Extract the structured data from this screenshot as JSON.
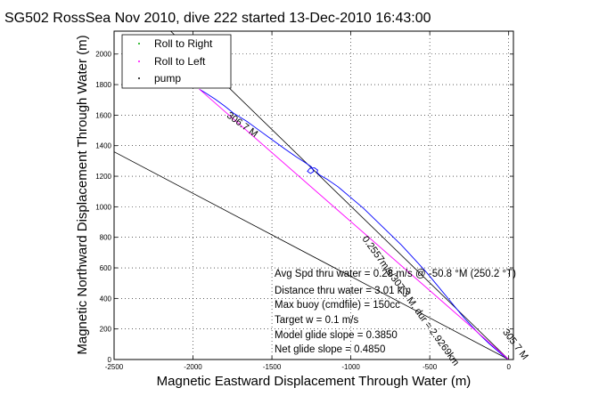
{
  "chart_data": {
    "type": "line",
    "title": "SG502 RossSea Nov 2010, dive 222 started 13-Dec-2010 16:43:00",
    "xlabel": "Magnetic Eastward Displacement Through Water (m)",
    "ylabel": "Magnetic Northward Displacement Through Water (m)",
    "xlim": [
      -2500,
      30
    ],
    "ylim": [
      0,
      2150
    ],
    "xticks": [
      -2500,
      -2000,
      -1500,
      -1000,
      -500,
      0
    ],
    "xtick_labels": [
      "-2500",
      "-2000",
      "-1500",
      "-1000",
      "-500",
      "0"
    ],
    "yticks": [
      0,
      200,
      400,
      600,
      800,
      1000,
      1200,
      1400,
      1600,
      1800,
      2000
    ],
    "ytick_labels": [
      "0",
      "200",
      "400",
      "600",
      "800",
      "1000",
      "1200",
      "1400",
      "1600",
      "1800",
      "2000"
    ],
    "grid": true,
    "legend_position": "top-left",
    "legend": [
      {
        "name": "Roll to Right",
        "color": "#00aa00"
      },
      {
        "name": "Roll to Left",
        "color": "#ff00ff"
      },
      {
        "name": "pump",
        "color": "#000000"
      }
    ],
    "series": [
      {
        "name": "track",
        "color": "#0000ff",
        "x": [
          0,
          -40,
          -120,
          -200,
          -280,
          -360,
          -440,
          -520,
          -600,
          -680,
          -760,
          -840,
          -920,
          -1000,
          -1080,
          -1150,
          -1200,
          -1215,
          -1210,
          -1230,
          -1260,
          -1275,
          -1255,
          -1235,
          -1250,
          -1290,
          -1350,
          -1420,
          -1500,
          -1580,
          -1660,
          -1740,
          -1800,
          -1860,
          -1920,
          -1960
        ],
        "y": [
          0,
          30,
          100,
          180,
          270,
          370,
          470,
          570,
          660,
          750,
          830,
          910,
          990,
          1060,
          1130,
          1180,
          1210,
          1225,
          1240,
          1255,
          1252,
          1232,
          1218,
          1232,
          1262,
          1290,
          1330,
          1380,
          1440,
          1500,
          1560,
          1610,
          1660,
          1705,
          1745,
          1770
        ]
      },
      {
        "name": "heading-306",
        "color": "#ff00ff",
        "x": [
          0,
          -1960
        ],
        "y": [
          0,
          1770
        ]
      }
    ],
    "reference_lines": [
      {
        "name": "upper-bound",
        "color": "#000000",
        "x": [
          0,
          -2500
        ],
        "y": [
          0,
          2510
        ]
      },
      {
        "name": "lower-bound",
        "color": "#000000",
        "x": [
          0,
          -2500
        ],
        "y": [
          0,
          1360
        ]
      }
    ],
    "line_annotations": [
      {
        "text": "306.7 M",
        "x": -1790,
        "y": 1590,
        "angle": 36
      },
      {
        "text": "0.2557m/s/307.3 M, dur = 2.9269km",
        "x": -930,
        "y": 790,
        "angle": 54
      },
      {
        "text": "305.7 M",
        "x": -40,
        "y": 180,
        "angle": 53
      }
    ],
    "stats": [
      "Avg Spd thru water = 0.28 m/s @ -50.8    °M (250.2 °T)",
      "Distance thru water = 3.01 km",
      "Max buoy (cmdfile) = 150cc",
      "Target w = 0.1 m/s",
      "Model glide slope = 0.3850",
      "Net glide slope = 0.4850"
    ]
  }
}
